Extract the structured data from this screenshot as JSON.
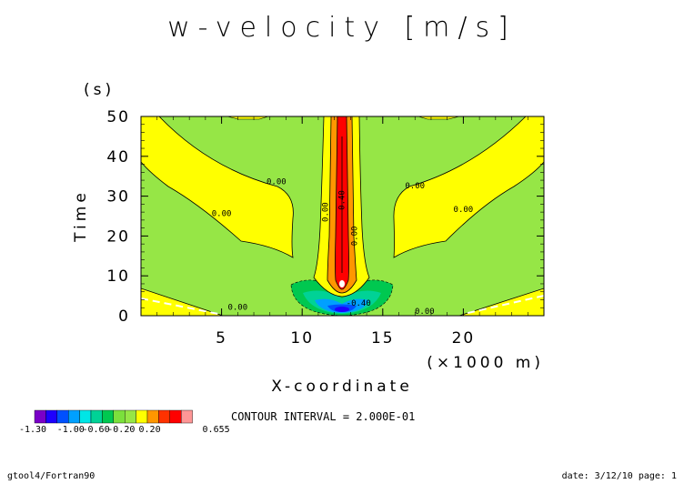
{
  "chart_data": {
    "type": "heatmap",
    "title": "w-velocity [m/s]",
    "xlabel": "X-coordinate",
    "xunit": "(×1000 m)",
    "ylabel": "Time",
    "yunit": "(s)",
    "xlim": [
      0,
      25
    ],
    "ylim": [
      0,
      50
    ],
    "xticks": [
      5,
      10,
      15,
      20
    ],
    "yticks": [
      0,
      10,
      20,
      30,
      40,
      50
    ],
    "contour_labels": [
      {
        "text": "0.00",
        "x": 8.4,
        "y": 33
      },
      {
        "text": "0.00",
        "x": 5.0,
        "y": 25
      },
      {
        "text": "0.00",
        "x": 11.6,
        "y": 26,
        "rotate": -90
      },
      {
        "text": "0.40",
        "x": 12.6,
        "y": 29,
        "rotate": -90
      },
      {
        "text": "0.00",
        "x": 13.4,
        "y": 20,
        "rotate": -90
      },
      {
        "text": "0.00",
        "x": 17.0,
        "y": 32
      },
      {
        "text": "0.00",
        "x": 20.0,
        "y": 26
      },
      {
        "text": "0.00",
        "x": 6.0,
        "y": 1.5
      },
      {
        "text": "0.00",
        "x": 17.6,
        "y": 0.5
      },
      {
        "text": "-0.40",
        "x": 13.5,
        "y": 2.5
      }
    ],
    "colorbar": {
      "colors": [
        "#7a00c8",
        "#1e00ff",
        "#0050ff",
        "#00a0ff",
        "#00e6e6",
        "#00d296",
        "#00c850",
        "#7be03c",
        "#96e646",
        "#ffff00",
        "#ff9600",
        "#ff3200",
        "#ff0000",
        "#ff9696"
      ],
      "labels": [
        "-1.30",
        "-1.00",
        "-0.60",
        "-0.20",
        "0.20",
        "0.655"
      ]
    },
    "contour_interval": "CONTOUR INTERVAL = 2.000E-01"
  },
  "footer": {
    "left": "gtool4/Fortran90",
    "right": "date: 3/12/10 page: 1"
  },
  "colors": {
    "background_field": "#96e646",
    "positive_lobe": "#ffff00",
    "jet_outer": "#ff9600",
    "jet_core": "#ff0000",
    "negative_region": "#00c850"
  }
}
